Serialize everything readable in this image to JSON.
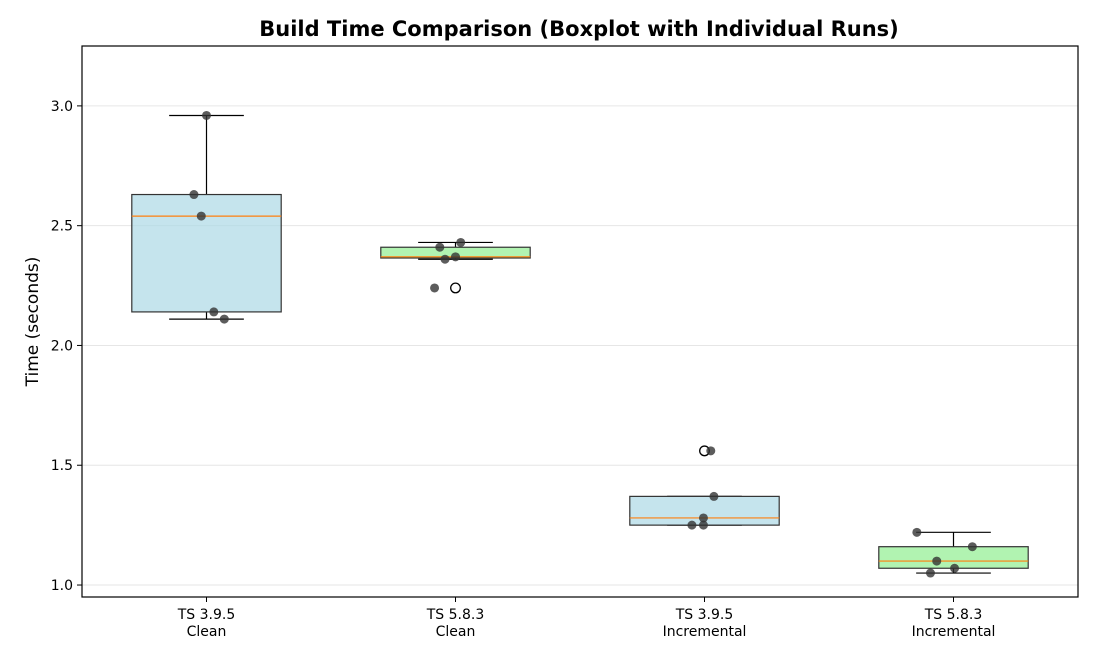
{
  "chart_data": {
    "type": "boxplot",
    "title": "Build Time Comparison (Boxplot with Individual Runs)",
    "xlabel": "",
    "ylabel": "Time (seconds)",
    "ylim": [
      0.95,
      3.25
    ],
    "yticks": [
      1.0,
      1.5,
      2.0,
      2.5,
      3.0
    ],
    "ytick_labels": [
      "1.0",
      "1.5",
      "2.0",
      "2.5",
      "3.0"
    ],
    "grid": "horizontal",
    "categories": [
      {
        "line1": "TS 3.9.5",
        "line2": "Clean"
      },
      {
        "line1": "TS 5.8.3",
        "line2": "Clean"
      },
      {
        "line1": "TS 3.9.5",
        "line2": "Incremental"
      },
      {
        "line1": "TS 5.8.3",
        "line2": "Incremental"
      }
    ],
    "boxes": [
      {
        "whisker_low": 2.11,
        "q1": 2.14,
        "median": 2.54,
        "q3": 2.63,
        "whisker_high": 2.96,
        "color": "#add8e6",
        "outliers": []
      },
      {
        "whisker_low": 2.36,
        "q1": 2.365,
        "median": 2.37,
        "q3": 2.41,
        "whisker_high": 2.43,
        "color": "#90ee90",
        "outliers": [
          2.24
        ]
      },
      {
        "whisker_low": 1.25,
        "q1": 1.25,
        "median": 1.28,
        "q3": 1.37,
        "whisker_high": 1.37,
        "color": "#add8e6",
        "outliers": [
          1.56
        ]
      },
      {
        "whisker_low": 1.05,
        "q1": 1.07,
        "median": 1.1,
        "q3": 1.16,
        "whisker_high": 1.22,
        "color": "#90ee90",
        "outliers": []
      }
    ],
    "runs": [
      [
        2.96,
        2.63,
        2.54,
        2.14,
        2.11
      ],
      [
        2.43,
        2.41,
        2.37,
        2.36,
        2.24
      ],
      [
        1.56,
        1.37,
        1.28,
        1.25,
        1.25
      ],
      [
        1.22,
        1.16,
        1.1,
        1.07,
        1.05
      ]
    ],
    "median_color": "#ff7f0e",
    "point_color": "#333333"
  }
}
